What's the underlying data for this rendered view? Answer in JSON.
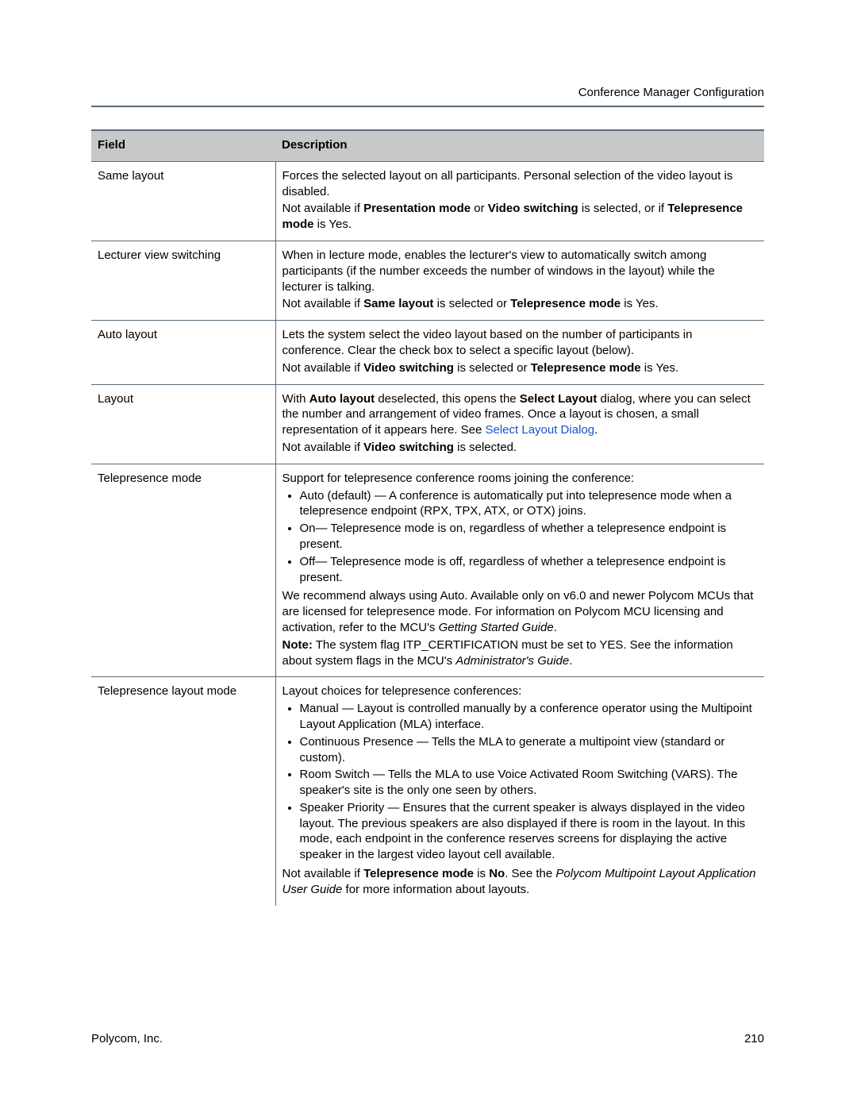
{
  "header": {
    "title": "Conference Manager Configuration"
  },
  "table": {
    "field_header": "Field",
    "description_header": "Description",
    "rows": [
      {
        "field": "Same layout",
        "d": {
          "p1": "Forces the selected layout on all participants. Personal selection of the video layout is disabled.",
          "p2_a": "Not available if ",
          "p2_b": "Presentation mode",
          "p2_c": " or ",
          "p2_d": "Video switching",
          "p2_e": " is selected, or if ",
          "p2_f": "Telepresence mode",
          "p2_g": " is Yes."
        }
      },
      {
        "field": "Lecturer view switching",
        "d": {
          "p1": "When in lecture mode, enables the lecturer's view to automatically switch among participants (if the number exceeds the number of windows in the layout) while the lecturer is talking.",
          "p2_a": "Not available if ",
          "p2_b": "Same layout",
          "p2_c": " is selected or ",
          "p2_d": "Telepresence mode",
          "p2_e": " is Yes."
        }
      },
      {
        "field": "Auto layout",
        "d": {
          "p1": "Lets the system select the video layout based on the number of participants in conference. Clear the check box to select a specific layout (below).",
          "p2_a": "Not available if ",
          "p2_b": "Video switching",
          "p2_c": " is selected or ",
          "p2_d": "Telepresence mode",
          "p2_e": " is Yes."
        }
      },
      {
        "field": "Layout",
        "d": {
          "p1_a": "With ",
          "p1_b": "Auto layout",
          "p1_c": " deselected, this opens the ",
          "p1_d": "Select Layout",
          "p1_e": " dialog, where you can select the number and arrangement of video frames. Once a layout is chosen, a small representation of it appears here. See ",
          "p1_link": "Select Layout Dialog",
          "p1_f": ".",
          "p2_a": "Not available if ",
          "p2_b": "Video switching",
          "p2_c": " is selected."
        }
      },
      {
        "field": "Telepresence mode",
        "d": {
          "intro": "Support for telepresence conference rooms joining the conference:",
          "li1": "Auto (default) — A conference is automatically put into telepresence mode when a telepresence endpoint (RPX, TPX, ATX, or OTX) joins.",
          "li2": "On— Telepresence mode is on, regardless of whether a telepresence endpoint is present.",
          "li3": "Off— Telepresence mode is off, regardless of whether a telepresence endpoint is present.",
          "p3_a": "We recommend always using Auto. Available only on v6.0 and newer Polycom MCUs that are licensed for telepresence mode. For information on Polycom MCU licensing and activation, refer to the MCU's ",
          "p3_b": "Getting Started Guide",
          "p3_c": ".",
          "p4_a": "Note:",
          "p4_b": " The system flag ITP_CERTIFICATION must be set to YES. See the information about system flags in the MCU's ",
          "p4_c": "Administrator's Guide",
          "p4_d": "."
        }
      },
      {
        "field": "Telepresence layout mode",
        "d": {
          "intro": "Layout choices for telepresence conferences:",
          "li1": "Manual — Layout is controlled manually by a conference operator using the Multipoint Layout Application (MLA) interface.",
          "li2": "Continuous Presence — Tells the MLA to generate a multipoint view (standard or custom).",
          "li3": "Room Switch — Tells the MLA to use Voice Activated Room Switching (VARS). The speaker's site is the only one seen by others.",
          "li4": "Speaker Priority — Ensures that the current speaker is always displayed in the video layout. The previous speakers are also displayed if there is room in the layout. In this mode, each endpoint in the conference reserves screens for displaying the active speaker in the largest video layout cell available.",
          "p3_a": "Not available if ",
          "p3_b": "Telepresence mode",
          "p3_c": " is ",
          "p3_d": "No",
          "p3_e": ". See the ",
          "p3_f": "Polycom Multipoint Layout Application User Guide",
          "p3_g": " for more information about layouts."
        }
      }
    ]
  },
  "footer": {
    "company": "Polycom, Inc.",
    "page_number": "210"
  }
}
